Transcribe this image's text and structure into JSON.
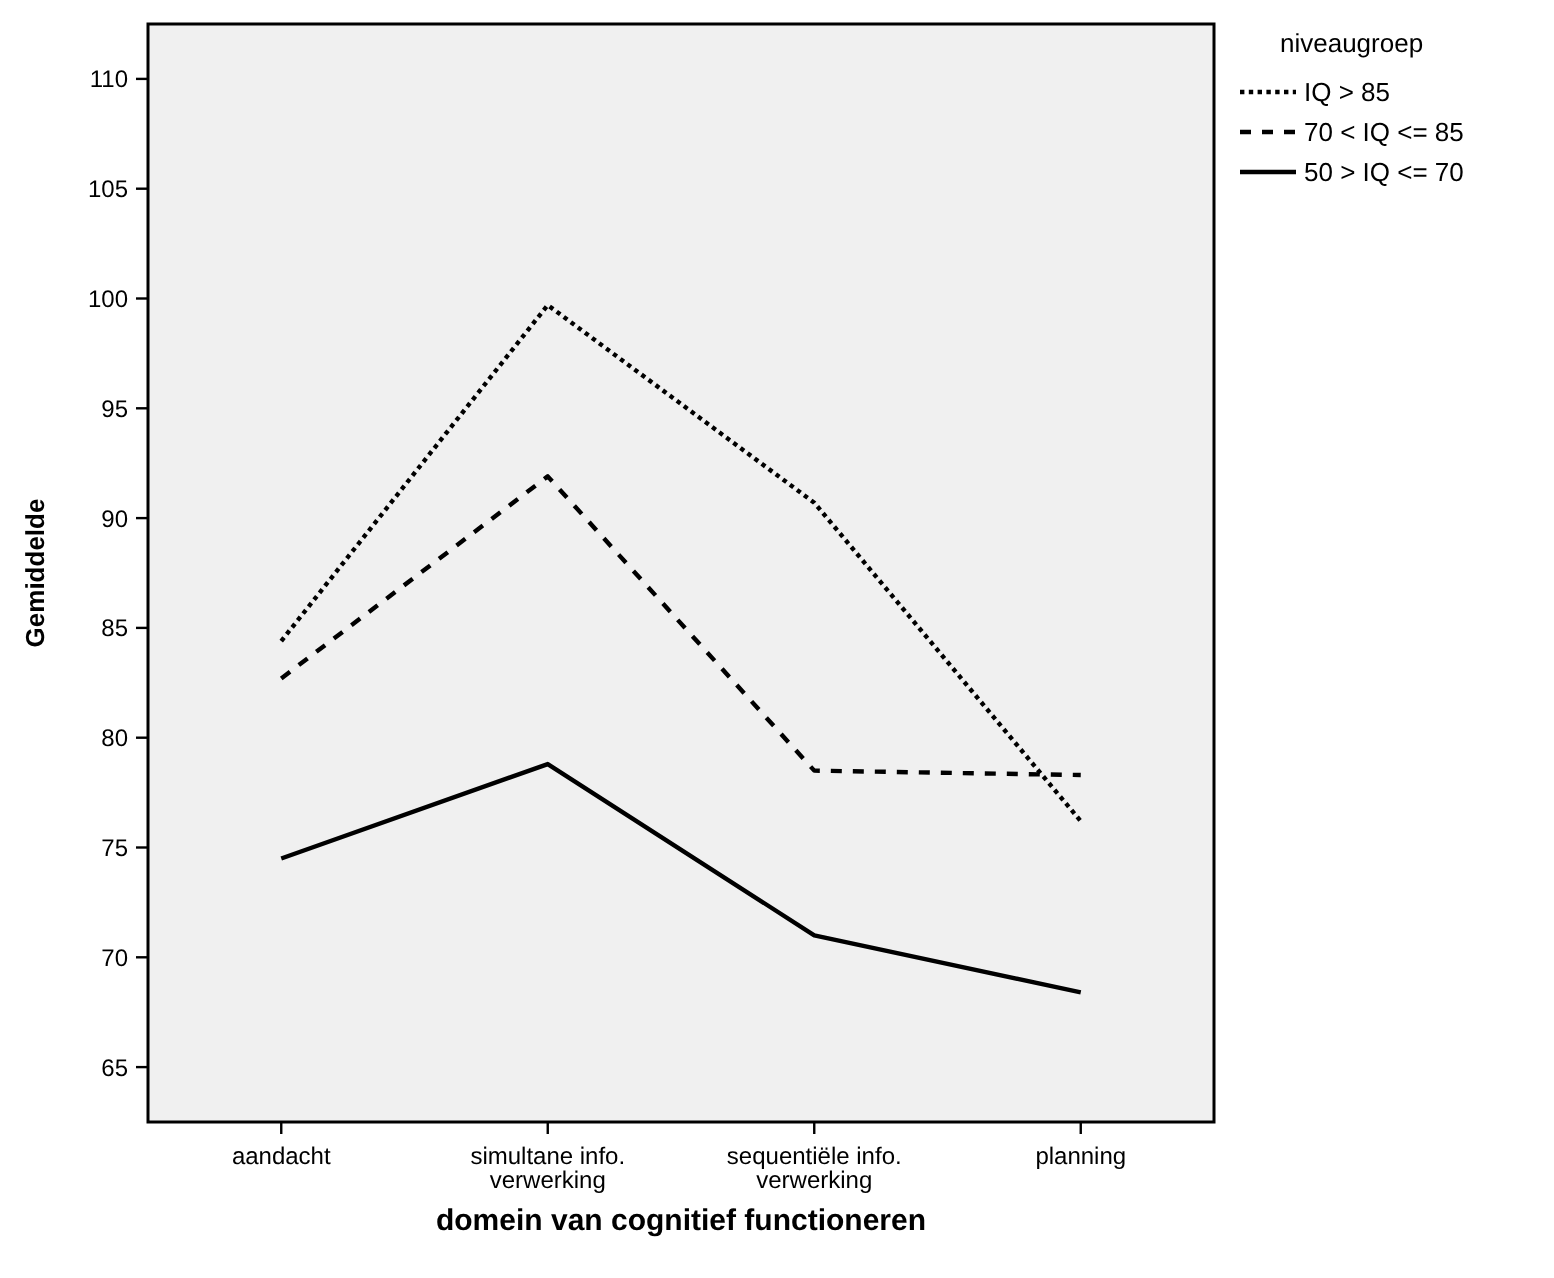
{
  "chart_data": {
    "type": "line",
    "xlabel": "domein van cognitief functioneren",
    "ylabel": "Gemiddelde",
    "legend_title": "niveaugroep",
    "legend": "top right",
    "grid": false,
    "marker": "none",
    "categories": [
      "aandacht",
      "simultane info.\nverwerking",
      "sequentiële info.\nverwerking",
      "planning"
    ],
    "ylim": [
      62.5,
      112.5
    ],
    "yticks": [
      65,
      70,
      75,
      80,
      85,
      90,
      95,
      100,
      105,
      110
    ],
    "series": [
      {
        "name": "IQ > 85",
        "color": "#000000",
        "line_style": "dotted",
        "values": [
          84.4,
          99.7,
          90.7,
          76.2
        ]
      },
      {
        "name": "70 < IQ <= 85",
        "color": "#000000",
        "line_style": "dashed",
        "values": [
          82.7,
          91.9,
          78.5,
          78.3
        ]
      },
      {
        "name": "50 > IQ <= 70",
        "color": "#000000",
        "line_style": "solid",
        "values": [
          74.5,
          78.8,
          71.0,
          68.4
        ]
      }
    ]
  }
}
